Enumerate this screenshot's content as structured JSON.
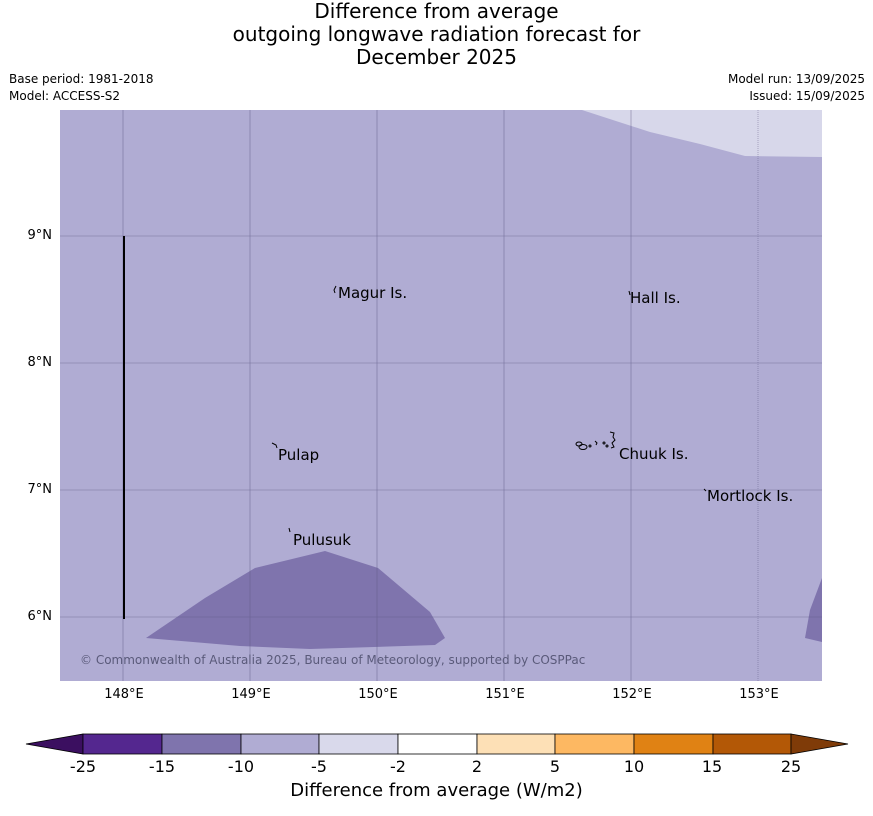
{
  "title": {
    "line1": "Difference from average",
    "line2": "outgoing longwave radiation forecast for",
    "line3": "December 2025"
  },
  "meta": {
    "base_period": "Base period: 1981-2018",
    "model": "Model: ACCESS-S2",
    "model_run": "Model run: 13/09/2025",
    "issued": "Issued: 15/09/2025"
  },
  "map": {
    "latitude_labels": [
      "9°N",
      "8°N",
      "7°N",
      "6°N"
    ],
    "longitude_labels": [
      "148°E",
      "149°E",
      "150°E",
      "151°E",
      "152°E",
      "153°E"
    ],
    "places": [
      "Magur Is.",
      "Hall Is.",
      "Pulap",
      "Chuuk Is.",
      "Mortlock Is.",
      "Pulusuk"
    ],
    "background_color": "#b0acd3",
    "region_colors": {
      "minus_15_to_minus_10": "#7f74ad",
      "minus_5_to_minus_2": "#d7d7ea"
    },
    "copyright": "© Commonwealth of Australia 2025, Bureau of Meteorology, supported by COSPPac"
  },
  "colorbar": {
    "title": "Difference from average (W/m2)",
    "ticks": [
      "-25",
      "-15",
      "-10",
      "-5",
      "-2",
      "2",
      "5",
      "10",
      "15",
      "25"
    ],
    "colors": [
      "#3b0f60",
      "#54278f",
      "#7f74ad",
      "#b0acd3",
      "#d9d9eb",
      "#ffffff",
      "#fde0b6",
      "#fdb862",
      "#e08214",
      "#b35806",
      "#7f3b08"
    ]
  }
}
